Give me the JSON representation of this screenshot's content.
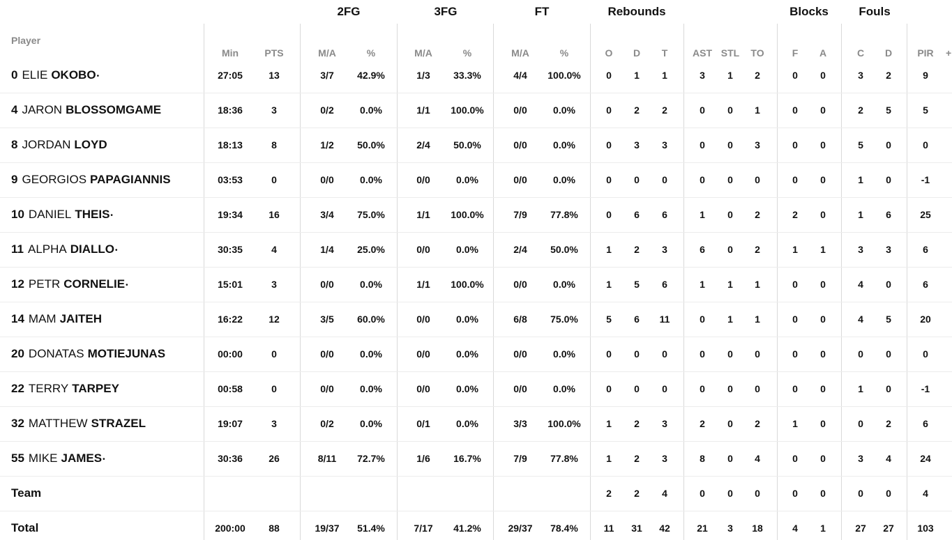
{
  "header": {
    "player_label": "Player",
    "groups": [
      "2FG",
      "3FG",
      "FT",
      "Rebounds",
      "Blocks",
      "Fouls"
    ],
    "columns": [
      "Min",
      "PTS",
      "M/A",
      "%",
      "M/A",
      "%",
      "M/A",
      "%",
      "O",
      "D",
      "T",
      "AST",
      "STL",
      "TO",
      "F",
      "A",
      "C",
      "D",
      "PIR"
    ],
    "extra": "+"
  },
  "players": [
    {
      "number": "0",
      "first": "ELIE",
      "last": "OKOBO",
      "starter_mark": "•",
      "stats": [
        "27:05",
        "13",
        "3/7",
        "42.9%",
        "1/3",
        "33.3%",
        "4/4",
        "100.0%",
        "0",
        "1",
        "1",
        "3",
        "1",
        "2",
        "0",
        "0",
        "3",
        "2",
        "9"
      ]
    },
    {
      "number": "4",
      "first": "JARON",
      "last": "BLOSSOMGAME",
      "starter_mark": "",
      "stats": [
        "18:36",
        "3",
        "0/2",
        "0.0%",
        "1/1",
        "100.0%",
        "0/0",
        "0.0%",
        "0",
        "2",
        "2",
        "0",
        "0",
        "1",
        "0",
        "0",
        "2",
        "5",
        "5"
      ]
    },
    {
      "number": "8",
      "first": "JORDAN",
      "last": "LOYD",
      "starter_mark": "",
      "stats": [
        "18:13",
        "8",
        "1/2",
        "50.0%",
        "2/4",
        "50.0%",
        "0/0",
        "0.0%",
        "0",
        "3",
        "3",
        "0",
        "0",
        "3",
        "0",
        "0",
        "5",
        "0",
        "0"
      ]
    },
    {
      "number": "9",
      "first": "GEORGIOS",
      "last": "PAPAGIANNIS",
      "starter_mark": "",
      "stats": [
        "03:53",
        "0",
        "0/0",
        "0.0%",
        "0/0",
        "0.0%",
        "0/0",
        "0.0%",
        "0",
        "0",
        "0",
        "0",
        "0",
        "0",
        "0",
        "0",
        "1",
        "0",
        "-1"
      ]
    },
    {
      "number": "10",
      "first": "DANIEL",
      "last": "THEIS",
      "starter_mark": "•",
      "stats": [
        "19:34",
        "16",
        "3/4",
        "75.0%",
        "1/1",
        "100.0%",
        "7/9",
        "77.8%",
        "0",
        "6",
        "6",
        "1",
        "0",
        "2",
        "2",
        "0",
        "1",
        "6",
        "25"
      ]
    },
    {
      "number": "11",
      "first": "ALPHA",
      "last": "DIALLO",
      "starter_mark": "•",
      "stats": [
        "30:35",
        "4",
        "1/4",
        "25.0%",
        "0/0",
        "0.0%",
        "2/4",
        "50.0%",
        "1",
        "2",
        "3",
        "6",
        "0",
        "2",
        "1",
        "1",
        "3",
        "3",
        "6"
      ]
    },
    {
      "number": "12",
      "first": "PETR",
      "last": "CORNELIE",
      "starter_mark": "•",
      "stats": [
        "15:01",
        "3",
        "0/0",
        "0.0%",
        "1/1",
        "100.0%",
        "0/0",
        "0.0%",
        "1",
        "5",
        "6",
        "1",
        "1",
        "1",
        "0",
        "0",
        "4",
        "0",
        "6"
      ]
    },
    {
      "number": "14",
      "first": "MAM",
      "last": "JAITEH",
      "starter_mark": "",
      "stats": [
        "16:22",
        "12",
        "3/5",
        "60.0%",
        "0/0",
        "0.0%",
        "6/8",
        "75.0%",
        "5",
        "6",
        "11",
        "0",
        "1",
        "1",
        "0",
        "0",
        "4",
        "5",
        "20"
      ]
    },
    {
      "number": "20",
      "first": "DONATAS",
      "last": "MOTIEJUNAS",
      "starter_mark": "",
      "stats": [
        "00:00",
        "0",
        "0/0",
        "0.0%",
        "0/0",
        "0.0%",
        "0/0",
        "0.0%",
        "0",
        "0",
        "0",
        "0",
        "0",
        "0",
        "0",
        "0",
        "0",
        "0",
        "0"
      ]
    },
    {
      "number": "22",
      "first": "TERRY",
      "last": "TARPEY",
      "starter_mark": "",
      "stats": [
        "00:58",
        "0",
        "0/0",
        "0.0%",
        "0/0",
        "0.0%",
        "0/0",
        "0.0%",
        "0",
        "0",
        "0",
        "0",
        "0",
        "0",
        "0",
        "0",
        "1",
        "0",
        "-1"
      ]
    },
    {
      "number": "32",
      "first": "MATTHEW",
      "last": "STRAZEL",
      "starter_mark": "",
      "stats": [
        "19:07",
        "3",
        "0/2",
        "0.0%",
        "0/1",
        "0.0%",
        "3/3",
        "100.0%",
        "1",
        "2",
        "3",
        "2",
        "0",
        "2",
        "1",
        "0",
        "0",
        "2",
        "6"
      ]
    },
    {
      "number": "55",
      "first": "MIKE",
      "last": "JAMES",
      "starter_mark": "•",
      "stats": [
        "30:36",
        "26",
        "8/11",
        "72.7%",
        "1/6",
        "16.7%",
        "7/9",
        "77.8%",
        "1",
        "2",
        "3",
        "8",
        "0",
        "4",
        "0",
        "0",
        "3",
        "4",
        "24"
      ]
    }
  ],
  "team": {
    "label": "Team",
    "stats": [
      "",
      "",
      "",
      "",
      "",
      "",
      "",
      "",
      "2",
      "2",
      "4",
      "0",
      "0",
      "0",
      "0",
      "0",
      "0",
      "0",
      "4"
    ]
  },
  "total": {
    "label": "Total",
    "stats": [
      "200:00",
      "88",
      "19/37",
      "51.4%",
      "7/17",
      "41.2%",
      "29/37",
      "78.4%",
      "11",
      "31",
      "42",
      "21",
      "3",
      "18",
      "4",
      "1",
      "27",
      "27",
      "103"
    ]
  }
}
